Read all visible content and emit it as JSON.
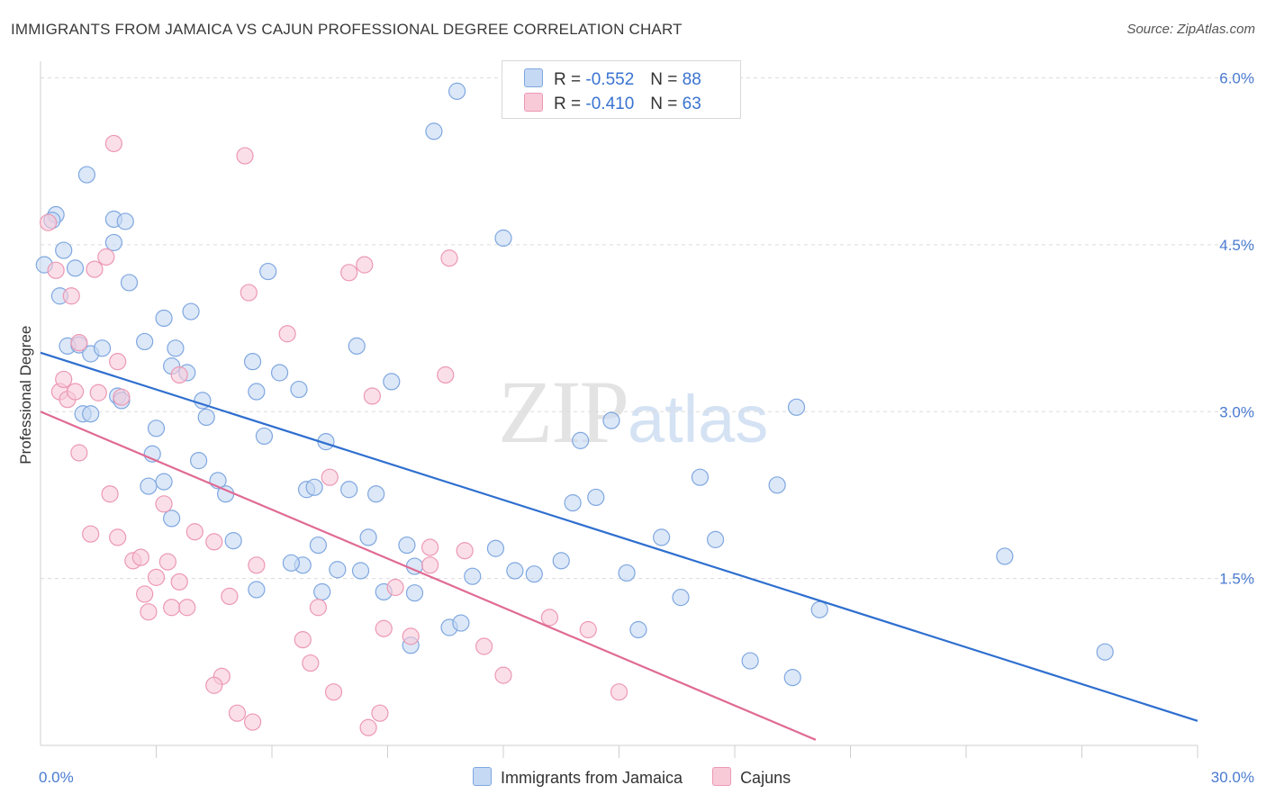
{
  "header": {
    "title": "IMMIGRANTS FROM JAMAICA VS CAJUN PROFESSIONAL DEGREE CORRELATION CHART",
    "source": "Source: ZipAtlas.com"
  },
  "watermark": {
    "zip": "ZIP",
    "atlas": "atlas"
  },
  "legend": {
    "r_label": "R =",
    "n_label": "N =",
    "rows": [
      {
        "r": "-0.552",
        "n": "88"
      },
      {
        "r": "-0.410",
        "n": "63"
      }
    ]
  },
  "colors": {
    "jamaica_fill": "#c5d9f4",
    "jamaica_stroke": "#7fa7e0",
    "jamaica_line": "#2f6fcf",
    "cajun_fill": "#f8cad8",
    "cajun_stroke": "#ec98b4",
    "cajun_line": "#e06a94"
  },
  "chart_data": {
    "type": "scatter",
    "title": "IMMIGRANTS FROM JAMAICA VS CAJUN PROFESSIONAL DEGREE CORRELATION CHART",
    "ylabel": "Professional Degree",
    "xlabel": "",
    "x_tick_labels": [
      "0.0%",
      "30.0%"
    ],
    "y_tick_labels": [
      "1.5%",
      "3.0%",
      "4.5%",
      "6.0%"
    ],
    "xlim": [
      0,
      30
    ],
    "ylim": [
      0,
      6.15
    ],
    "grid": true,
    "legend_position": "top-center",
    "series": [
      {
        "name": "Immigrants from Jamaica",
        "points": [
          [
            0.1,
            4.32
          ],
          [
            0.4,
            4.77
          ],
          [
            0.3,
            4.72
          ],
          [
            1.2,
            5.13
          ],
          [
            0.6,
            4.45
          ],
          [
            0.9,
            4.29
          ],
          [
            0.5,
            4.04
          ],
          [
            1.9,
            4.73
          ],
          [
            1.9,
            4.52
          ],
          [
            2.2,
            4.71
          ],
          [
            2.3,
            4.16
          ],
          [
            0.7,
            3.59
          ],
          [
            1.0,
            3.6
          ],
          [
            1.3,
            3.52
          ],
          [
            1.6,
            3.57
          ],
          [
            1.1,
            2.98
          ],
          [
            1.3,
            2.98
          ],
          [
            2.0,
            3.14
          ],
          [
            2.1,
            3.1
          ],
          [
            2.7,
            3.63
          ],
          [
            3.2,
            3.84
          ],
          [
            3.5,
            3.57
          ],
          [
            3.9,
            3.9
          ],
          [
            3.4,
            3.41
          ],
          [
            3.8,
            3.35
          ],
          [
            4.2,
            3.1
          ],
          [
            4.3,
            2.95
          ],
          [
            4.1,
            2.56
          ],
          [
            3.0,
            2.85
          ],
          [
            2.9,
            2.62
          ],
          [
            2.8,
            2.33
          ],
          [
            3.2,
            2.37
          ],
          [
            3.4,
            2.04
          ],
          [
            4.6,
            2.38
          ],
          [
            4.8,
            2.26
          ],
          [
            5.0,
            1.84
          ],
          [
            5.5,
            3.45
          ],
          [
            5.6,
            3.18
          ],
          [
            5.9,
            4.26
          ],
          [
            5.8,
            2.78
          ],
          [
            6.2,
            3.35
          ],
          [
            6.7,
            3.2
          ],
          [
            6.8,
            1.62
          ],
          [
            6.5,
            1.64
          ],
          [
            5.6,
            1.4
          ],
          [
            7.2,
            1.8
          ],
          [
            7.3,
            1.38
          ],
          [
            6.9,
            2.3
          ],
          [
            7.4,
            2.73
          ],
          [
            7.1,
            2.32
          ],
          [
            8.7,
            2.26
          ],
          [
            8.2,
            3.59
          ],
          [
            8.9,
            1.38
          ],
          [
            7.7,
            1.58
          ],
          [
            8.0,
            2.3
          ],
          [
            8.3,
            1.57
          ],
          [
            8.5,
            1.87
          ],
          [
            9.1,
            3.27
          ],
          [
            9.5,
            1.8
          ],
          [
            9.7,
            1.37
          ],
          [
            9.7,
            1.61
          ],
          [
            9.6,
            0.9
          ],
          [
            10.6,
            1.06
          ],
          [
            10.9,
            1.1
          ],
          [
            10.2,
            5.52
          ],
          [
            10.8,
            5.88
          ],
          [
            11.2,
            1.52
          ],
          [
            12.3,
            1.57
          ],
          [
            11.8,
            1.77
          ],
          [
            12.0,
            4.56
          ],
          [
            12.8,
            1.54
          ],
          [
            13.5,
            1.66
          ],
          [
            13.8,
            2.18
          ],
          [
            14.4,
            2.23
          ],
          [
            14.0,
            2.74
          ],
          [
            14.8,
            2.92
          ],
          [
            15.2,
            1.55
          ],
          [
            15.5,
            1.04
          ],
          [
            16.1,
            1.87
          ],
          [
            16.6,
            1.33
          ],
          [
            17.1,
            2.41
          ],
          [
            17.5,
            1.85
          ],
          [
            18.4,
            0.76
          ],
          [
            19.1,
            2.34
          ],
          [
            19.6,
            3.04
          ],
          [
            19.5,
            0.61
          ],
          [
            20.2,
            1.22
          ],
          [
            25.0,
            1.7
          ],
          [
            27.6,
            0.84
          ]
        ],
        "trend": {
          "x": [
            0,
            30
          ],
          "y": [
            3.53,
            0.22
          ]
        }
      },
      {
        "name": "Cajuns",
        "points": [
          [
            0.2,
            4.7
          ],
          [
            0.4,
            4.27
          ],
          [
            0.8,
            4.04
          ],
          [
            1.0,
            3.62
          ],
          [
            1.4,
            4.28
          ],
          [
            1.9,
            5.41
          ],
          [
            5.3,
            5.3
          ],
          [
            0.5,
            3.18
          ],
          [
            0.6,
            3.29
          ],
          [
            0.7,
            3.11
          ],
          [
            1.5,
            3.17
          ],
          [
            2.1,
            3.13
          ],
          [
            2.0,
            3.45
          ],
          [
            1.0,
            2.63
          ],
          [
            1.8,
            2.26
          ],
          [
            1.3,
            1.9
          ],
          [
            2.0,
            1.87
          ],
          [
            2.4,
            1.66
          ],
          [
            2.6,
            1.69
          ],
          [
            3.2,
            2.17
          ],
          [
            3.3,
            1.65
          ],
          [
            2.7,
            1.36
          ],
          [
            3.0,
            1.51
          ],
          [
            2.8,
            1.2
          ],
          [
            3.4,
            1.24
          ],
          [
            3.6,
            3.33
          ],
          [
            3.6,
            1.47
          ],
          [
            3.8,
            1.24
          ],
          [
            4.0,
            1.92
          ],
          [
            4.5,
            1.83
          ],
          [
            4.9,
            1.34
          ],
          [
            4.7,
            0.62
          ],
          [
            4.5,
            0.54
          ],
          [
            5.1,
            0.29
          ],
          [
            5.5,
            0.21
          ],
          [
            5.6,
            1.62
          ],
          [
            5.4,
            4.07
          ],
          [
            6.4,
            3.7
          ],
          [
            7.2,
            1.24
          ],
          [
            7.5,
            2.41
          ],
          [
            6.8,
            0.95
          ],
          [
            7.0,
            0.74
          ],
          [
            7.6,
            0.48
          ],
          [
            8.0,
            4.25
          ],
          [
            8.4,
            4.32
          ],
          [
            8.6,
            3.14
          ],
          [
            8.9,
            1.05
          ],
          [
            8.5,
            0.16
          ],
          [
            8.8,
            0.29
          ],
          [
            9.2,
            1.42
          ],
          [
            9.6,
            0.98
          ],
          [
            10.6,
            4.38
          ],
          [
            10.5,
            3.33
          ],
          [
            10.1,
            1.62
          ],
          [
            11.0,
            1.75
          ],
          [
            11.5,
            0.89
          ],
          [
            12.0,
            0.63
          ],
          [
            13.2,
            1.15
          ],
          [
            14.2,
            1.04
          ],
          [
            15.0,
            0.48
          ],
          [
            0.9,
            3.18
          ],
          [
            1.7,
            4.39
          ],
          [
            10.1,
            1.78
          ]
        ],
        "trend": {
          "x": [
            0,
            20.1
          ],
          "y": [
            3.0,
            0.05
          ]
        }
      }
    ]
  }
}
